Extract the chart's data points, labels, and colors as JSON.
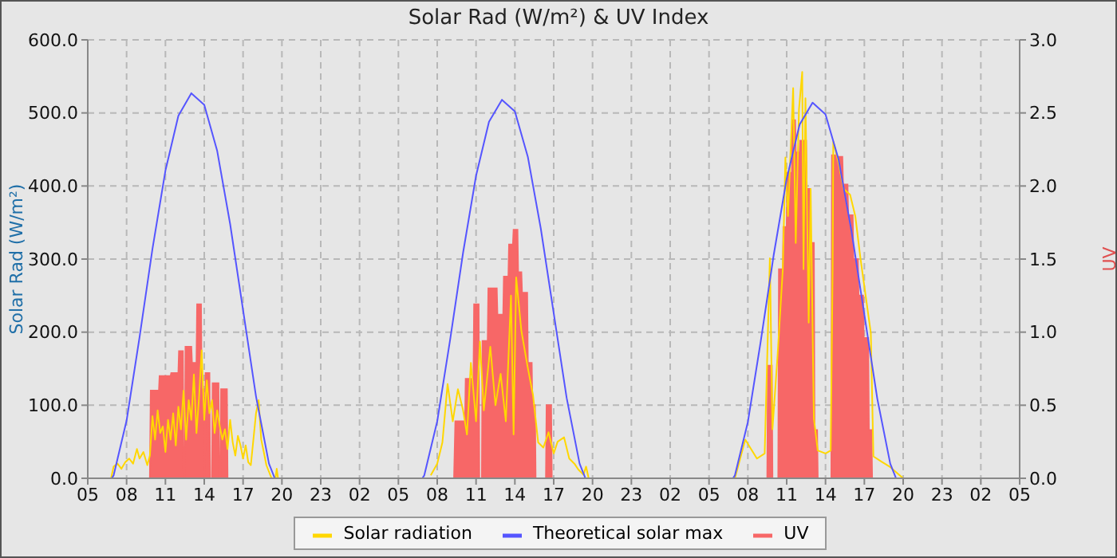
{
  "chart_data": {
    "type": "line",
    "title": "Solar Rad (W/m²) & UV Index",
    "ylabel": "Solar Rad (W/m²)",
    "y2label": "UV",
    "xlim": [
      "--01-01T05:00",
      "--01-04T05:00"
    ],
    "xticks": [
      {
        "value": "--01-01T05:00",
        "label": "05"
      },
      {
        "value": "--01-01T08:00",
        "label": "08"
      },
      {
        "value": "--01-01T11:00",
        "label": "11"
      },
      {
        "value": "--01-01T14:00",
        "label": "14"
      },
      {
        "value": "--01-01T17:00",
        "label": "17"
      },
      {
        "value": "--01-01T20:00",
        "label": "20"
      },
      {
        "value": "--01-01T23:00",
        "label": "23"
      },
      {
        "value": "--01-02T02:00",
        "label": "02"
      },
      {
        "value": "--01-02T05:00",
        "label": "05"
      },
      {
        "value": "--01-02T08:00",
        "label": "08"
      },
      {
        "value": "--01-02T11:00",
        "label": "11"
      },
      {
        "value": "--01-02T14:00",
        "label": "14"
      },
      {
        "value": "--01-02T17:00",
        "label": "17"
      },
      {
        "value": "--01-02T20:00",
        "label": "20"
      },
      {
        "value": "--01-02T23:00",
        "label": "23"
      },
      {
        "value": "--01-03T02:00",
        "label": "02"
      },
      {
        "value": "--01-03T05:00",
        "label": "05"
      },
      {
        "value": "--01-03T08:00",
        "label": "08"
      },
      {
        "value": "--01-03T11:00",
        "label": "11"
      },
      {
        "value": "--01-03T14:00",
        "label": "14"
      },
      {
        "value": "--01-03T17:00",
        "label": "17"
      },
      {
        "value": "--01-03T20:00",
        "label": "20"
      },
      {
        "value": "--01-03T23:00",
        "label": "23"
      },
      {
        "value": "--01-04T02:00",
        "label": "02"
      },
      {
        "value": "--01-04T05:00",
        "label": "05"
      }
    ],
    "ylim": [
      0,
      600
    ],
    "yticks": [
      {
        "value": 0,
        "label": "0.0"
      },
      {
        "value": 100,
        "label": "100.0"
      },
      {
        "value": 200,
        "label": "200.0"
      },
      {
        "value": 300,
        "label": "300.0"
      },
      {
        "value": 400,
        "label": "400.0"
      },
      {
        "value": 500,
        "label": "500.0"
      },
      {
        "value": 600,
        "label": "600.0"
      }
    ],
    "y2lim": [
      0,
      3
    ],
    "y2ticks": [
      {
        "value": 0,
        "label": "0.0"
      },
      {
        "value": 0.5,
        "label": "0.5"
      },
      {
        "value": 1,
        "label": "1.0"
      },
      {
        "value": 1.5,
        "label": "1.5"
      },
      {
        "value": 2,
        "label": "2.0"
      },
      {
        "value": 2.5,
        "label": "2.5"
      },
      {
        "value": 3,
        "label": "3.0"
      }
    ],
    "grid": true,
    "legend": "bottom",
    "marker": "none",
    "line_style": "solid",
    "series": [
      {
        "name": "Solar radiation",
        "type": "line",
        "color": "#ffd700",
        "x": [
          "--01-01T06:48",
          "--01-01T07:00",
          "--01-01T07:18",
          "--01-01T07:36",
          "--01-01T07:54",
          "--01-01T08:12",
          "--01-01T08:30",
          "--01-01T08:48",
          "--01-01T09:00",
          "--01-01T09:18",
          "--01-01T09:36",
          "--01-01T09:48",
          "--01-01T10:00",
          "--01-01T10:12",
          "--01-01T10:24",
          "--01-01T10:36",
          "--01-01T10:48",
          "--01-01T11:00",
          "--01-01T11:12",
          "--01-01T11:24",
          "--01-01T11:36",
          "--01-01T11:48",
          "--01-01T12:00",
          "--01-01T12:12",
          "--01-01T12:24",
          "--01-01T12:36",
          "--01-01T12:48",
          "--01-01T13:00",
          "--01-01T13:12",
          "--01-01T13:24",
          "--01-01T13:36",
          "--01-01T13:48",
          "--01-01T14:00",
          "--01-01T14:12",
          "--01-01T14:24",
          "--01-01T14:36",
          "--01-01T14:48",
          "--01-01T15:00",
          "--01-01T15:12",
          "--01-01T15:24",
          "--01-01T15:36",
          "--01-01T15:48",
          "--01-01T16:00",
          "--01-01T16:12",
          "--01-01T16:24",
          "--01-01T16:36",
          "--01-01T16:48",
          "--01-01T17:00",
          "--01-01T17:12",
          "--01-01T17:24",
          "--01-01T17:36",
          "--01-01T18:00",
          "--01-01T18:12",
          "--01-01T18:24",
          "--01-01T18:36",
          "--01-01T18:48",
          "--01-01T19:00",
          "--01-01T19:12",
          "--01-01T19:30",
          "--01-01T19:36",
          "--01-01T19:42",
          "--01-02T01:00",
          "--01-02T07:30",
          "--01-02T08:00",
          "--01-02T08:24",
          "--01-02T08:48",
          "--01-02T09:12",
          "--01-02T09:36",
          "--01-02T10:00",
          "--01-02T10:18",
          "--01-02T10:36",
          "--01-02T11:00",
          "--01-02T11:18",
          "--01-02T11:36",
          "--01-02T12:06",
          "--01-02T12:30",
          "--01-02T12:54",
          "--01-02T13:18",
          "--01-02T13:42",
          "--01-02T13:54",
          "--01-02T14:06",
          "--01-02T14:30",
          "--01-02T15:00",
          "--01-02T15:24",
          "--01-02T15:48",
          "--01-02T16:12",
          "--01-02T16:36",
          "--01-02T17:00",
          "--01-02T17:18",
          "--01-02T17:48",
          "--01-02T18:12",
          "--01-02T18:36",
          "--01-02T18:54",
          "--01-02T19:18",
          "--01-02T19:30",
          "--01-02T19:42",
          "--01-03T02:00",
          "--01-03T07:00",
          "--01-03T07:48",
          "--01-03T08:42",
          "--01-03T09:18",
          "--01-03T09:42",
          "--01-03T09:54",
          "--01-03T10:18",
          "--01-03T10:42",
          "--01-03T10:54",
          "--01-03T11:06",
          "--01-03T11:18",
          "--01-03T11:30",
          "--01-03T11:42",
          "--01-03T11:57",
          "--01-03T12:12",
          "--01-03T12:18",
          "--01-03T12:27",
          "--01-03T12:42",
          "--01-03T12:51",
          "--01-03T13:06",
          "--01-03T13:24",
          "--01-03T14:00",
          "--01-03T14:24",
          "--01-03T14:33",
          "--01-03T14:36",
          "--01-03T15:00",
          "--01-03T15:24",
          "--01-03T15:54",
          "--01-03T16:18",
          "--01-03T16:42",
          "--01-03T17:06",
          "--01-03T17:30",
          "--01-03T17:42",
          "--01-03T18:18",
          "--01-03T18:57",
          "--01-03T20:00"
        ],
        "values": [
          0,
          16,
          20,
          13,
          22,
          27,
          20,
          40,
          27,
          36,
          18,
          31,
          85,
          53,
          93,
          62,
          71,
          36,
          80,
          53,
          89,
          45,
          98,
          67,
          120,
          53,
          107,
          80,
          142,
          62,
          111,
          175,
          80,
          134,
          89,
          107,
          62,
          93,
          71,
          53,
          67,
          40,
          80,
          49,
          31,
          58,
          45,
          27,
          45,
          22,
          18,
          89,
          107,
          53,
          36,
          18,
          9,
          0,
          0,
          13,
          0,
          null,
          4,
          20,
          49,
          129,
          78,
          122,
          93,
          60,
          158,
          78,
          187,
          93,
          180,
          100,
          143,
          78,
          250,
          60,
          275,
          202,
          151,
          114,
          49,
          42,
          63,
          34,
          50,
          56,
          27,
          20,
          12,
          5,
          16,
          0,
          null,
          0,
          53,
          27,
          34,
          301,
          67,
          169,
          286,
          439,
          359,
          447,
          534,
          322,
          505,
          556,
          286,
          520,
          213,
          396,
          82,
          38,
          34,
          38,
          286,
          461,
          432,
          396,
          388,
          359,
          301,
          250,
          199,
          30,
          23,
          16,
          0
        ]
      },
      {
        "name": "Theoretical solar max",
        "type": "line",
        "color": "#5555ff",
        "x": [
          "--01-01T06:51",
          "--01-01T07:00",
          "--01-01T08:00",
          "--01-01T09:00",
          "--01-01T10:00",
          "--01-01T11:00",
          "--01-01T12:00",
          "--01-01T13:00",
          "--01-01T14:00",
          "--01-01T15:00",
          "--01-01T16:00",
          "--01-01T17:00",
          "--01-01T18:00",
          "--01-01T19:00",
          "--01-01T19:27",
          "--01-02T01:00",
          "--01-02T06:51",
          "--01-02T07:00",
          "--01-02T08:00",
          "--01-02T09:00",
          "--01-02T10:00",
          "--01-02T11:00",
          "--01-02T12:00",
          "--01-02T13:00",
          "--01-02T14:00",
          "--01-02T15:00",
          "--01-02T16:00",
          "--01-02T17:00",
          "--01-02T18:00",
          "--01-02T19:00",
          "--01-02T19:27",
          "--01-03T02:00",
          "--01-03T06:51",
          "--01-03T07:00",
          "--01-03T08:00",
          "--01-03T09:00",
          "--01-03T10:00",
          "--01-03T11:00",
          "--01-03T12:00",
          "--01-03T13:00",
          "--01-03T14:00",
          "--01-03T15:00",
          "--01-03T16:00",
          "--01-03T17:00",
          "--01-03T18:00",
          "--01-03T19:00",
          "--01-03T19:27"
        ],
        "values": [
          0,
          4,
          79,
          193,
          314,
          421,
          496,
          527,
          511,
          448,
          348,
          230,
          112,
          20,
          0,
          null,
          0,
          4,
          78,
          190,
          309,
          414,
          488,
          518,
          502,
          440,
          342,
          226,
          110,
          20,
          0,
          null,
          0,
          4,
          77,
          188,
          306,
          410,
          484,
          514,
          498,
          437,
          339,
          224,
          109,
          20,
          0
        ]
      },
      {
        "name": "UV",
        "type": "area",
        "axis": "y2",
        "color": "#f76767",
        "x": [
          "--01-01T05:00",
          "--01-01T09:48",
          "--01-01T09:52",
          "--01-01T10:30",
          "--01-01T10:33",
          "--01-01T11:24",
          "--01-01T11:27",
          "--01-01T12:00",
          "--01-01T12:03",
          "--01-01T12:21",
          "--01-01T12:24",
          "--01-01T12:30",
          "--01-01T12:33",
          "--01-01T13:00",
          "--01-01T13:03",
          "--01-01T13:24",
          "--01-01T13:27",
          "--01-01T13:45",
          "--01-01T13:48",
          "--01-01T13:57",
          "--01-01T14:00",
          "--01-01T14:03",
          "--01-01T14:06",
          "--01-01T14:24",
          "--01-01T14:27",
          "--01-01T14:36",
          "--01-01T14:39",
          "--01-01T15:06",
          "--01-01T15:09",
          "--01-01T15:15",
          "--01-01T15:18",
          "--01-01T15:45",
          "--01-01T15:48",
          "--01-02T09:18",
          "--01-02T09:24",
          "--01-02T10:09",
          "--01-02T10:12",
          "--01-02T10:48",
          "--01-02T10:51",
          "--01-02T11:12",
          "--01-02T11:15",
          "--01-02T11:27",
          "--01-02T11:30",
          "--01-02T11:54",
          "--01-02T11:57",
          "--01-02T12:36",
          "--01-02T12:39",
          "--01-02T13:06",
          "--01-02T13:09",
          "--01-02T13:30",
          "--01-02T13:33",
          "--01-02T13:51",
          "--01-02T13:54",
          "--01-02T14:12",
          "--01-02T14:15",
          "--01-02T14:30",
          "--01-02T14:33",
          "--01-02T14:57",
          "--01-02T15:00",
          "--01-02T15:18",
          "--01-02T15:21",
          "--01-02T15:33",
          "--01-02T15:36",
          "--01-02T16:24",
          "--01-02T16:27",
          "--01-02T16:48",
          "--01-02T16:51",
          "--01-03T09:30",
          "--01-03T09:33",
          "--01-03T09:51",
          "--01-03T09:54",
          "--01-03T10:21",
          "--01-03T10:24",
          "--01-03T10:42",
          "--01-03T10:45",
          "--01-03T11:00",
          "--01-03T11:03",
          "--01-03T11:24",
          "--01-03T11:27",
          "--01-03T11:39",
          "--01-03T11:42",
          "--01-03T12:00",
          "--01-03T12:03",
          "--01-03T12:30",
          "--01-03T12:33",
          "--01-03T12:48",
          "--01-03T12:51",
          "--01-03T13:06",
          "--01-03T13:09",
          "--01-03T13:21",
          "--01-03T13:24",
          "--01-03T14:27",
          "--01-03T14:30",
          "--01-03T14:48",
          "--01-03T14:51",
          "--01-03T15:18",
          "--01-03T15:21",
          "--01-03T15:42",
          "--01-03T15:45",
          "--01-03T16:06",
          "--01-03T16:09",
          "--01-03T16:30",
          "--01-03T16:33",
          "--01-03T16:54",
          "--01-03T16:57",
          "--01-03T17:18",
          "--01-03T17:21",
          "--01-03T17:33",
          "--01-03T17:36",
          "--01-04T05:00"
        ],
        "values": [
          0,
          0,
          0.6,
          0.6,
          0.7,
          0.7,
          0.72,
          0.72,
          0.87,
          0.87,
          0,
          0,
          0.9,
          0.9,
          0.79,
          0.79,
          1.19,
          1.19,
          0.61,
          0.61,
          0,
          0,
          0.72,
          0.72,
          0,
          0,
          0.65,
          0.65,
          0,
          0,
          0.61,
          0.61,
          0,
          0,
          0.39,
          0.39,
          0.68,
          0.68,
          1.19,
          1.19,
          0,
          0,
          0.94,
          0.94,
          1.3,
          1.3,
          1.12,
          1.12,
          1.38,
          1.38,
          1.6,
          1.6,
          1.7,
          1.7,
          1.41,
          1.41,
          1.27,
          1.27,
          0.79,
          0.79,
          0.5,
          0.5,
          0,
          0,
          0.5,
          0.5,
          0,
          0,
          0.77,
          0.77,
          0,
          0,
          1.43,
          1.43,
          1.72,
          1.72,
          2.09,
          2.09,
          2.45,
          2.45,
          2.23,
          2.23,
          2.31,
          2.31,
          1.98,
          1.98,
          1.61,
          1.61,
          0.33,
          0.33,
          0,
          0,
          2.21,
          2.21,
          2.2,
          2.2,
          2.01,
          2.01,
          1.8,
          1.8,
          1.5,
          1.5,
          1.25,
          1.25,
          0.96,
          0.96,
          0.33,
          0.33,
          0,
          0
        ]
      }
    ]
  }
}
